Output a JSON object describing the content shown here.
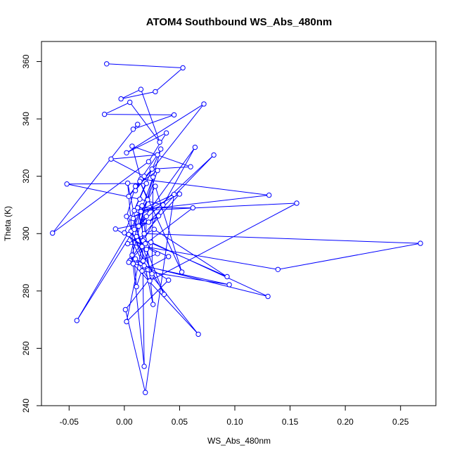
{
  "chart_data": {
    "type": "line",
    "title": "ATOM4 Southbound WS_Abs_480nm",
    "xlabel": "WS_Abs_480nm",
    "ylabel": "Theta (K)",
    "xlim": [
      -0.075,
      0.282
    ],
    "ylim": [
      240,
      367
    ],
    "xticks": [
      -0.05,
      0.0,
      0.05,
      0.1,
      0.15,
      0.2,
      0.25
    ],
    "xtick_labels": [
      "-0.05",
      "0.00",
      "0.05",
      "0.10",
      "0.15",
      "0.20",
      "0.25"
    ],
    "yticks": [
      240,
      260,
      280,
      300,
      320,
      340,
      360
    ],
    "ytick_labels": [
      "240",
      "260",
      "280",
      "300",
      "320",
      "340",
      "360"
    ],
    "grid": false,
    "series_color": "#0000ff",
    "marker": "open-circle",
    "series": [
      {
        "x": [
          -0.016,
          0.053,
          0.028,
          -0.003,
          0.015,
          0.032,
          0.005,
          -0.018,
          0.045,
          0.008,
          0.012,
          -0.065,
          0.022,
          0.038,
          0.002,
          0.072,
          0.01,
          0.018,
          -0.012,
          0.03,
          0.004,
          0.025,
          0.06,
          0.007,
          0.015,
          0.131,
          0.009,
          0.02,
          -0.052,
          0.014,
          0.035,
          0.006,
          0.05,
          0.018,
          0.268,
          0.139,
          0.003,
          0.027,
          0.093,
          0.011,
          0.02,
          0.04,
          0.016,
          0.095,
          0.008,
          0.03,
          -0.008,
          0.022,
          0.081,
          0.012,
          0.064,
          0.018,
          0.005,
          0.067,
          0.025,
          0.001,
          0.019,
          0.045,
          0.013,
          0.156,
          0.023,
          0.01,
          0.04,
          0.002,
          0.017,
          0.036,
          0.006,
          0.028,
          0.052,
          0.014,
          0.021,
          -0.043,
          0.009,
          0.031,
          0.004,
          0.018,
          0.13,
          0.024,
          0.011,
          0.003,
          0.026,
          0.016,
          0.018,
          0.007,
          0.033,
          0.0,
          0.02,
          0.012,
          0.062,
          0.016,
          0.008,
          0.025,
          0.026,
          0.015,
          0.004,
          0.019,
          0.02,
          0.013,
          0.03,
          0.01,
          0.002,
          0.017
        ],
        "y": [
          359.2,
          357.8,
          349.5,
          347.0,
          350.3,
          331.9,
          345.8,
          341.6,
          341.4,
          336.4,
          338.1,
          300.2,
          325.1,
          335.1,
          328.2,
          345.2,
          315.0,
          320.0,
          326.0,
          327.5,
          313.0,
          322.5,
          323.3,
          330.5,
          319.0,
          313.4,
          308.0,
          317.5,
          317.3,
          312.0,
          310.0,
          305.5,
          313.8,
          300.0,
          296.6,
          287.5,
          296.5,
          301.5,
          285.0,
          299.0,
          295.5,
          292.0,
          287.0,
          282.2,
          289.5,
          293.0,
          301.6,
          304.0,
          327.4,
          302.5,
          330.1,
          298.0,
          290.6,
          264.9,
          285.2,
          273.5,
          244.6,
          313.7,
          308.0,
          310.6,
          283.5,
          291.2,
          283.8,
          269.3,
          297.5,
          278.8,
          300.8,
          316.5,
          286.6,
          318.2,
          311.8,
          269.7,
          301.5,
          306.2,
          299.7,
          288.8,
          278.1,
          297.0,
          281.5,
          317.6,
          275.3,
          309.7,
          253.7,
          292.5,
          329.5,
          300.3,
          294.5,
          309.0,
          309.0,
          295.5,
          305.3,
          286.0,
          319.7,
          307.7,
          290.0,
          296.5,
          306.0,
          302.6,
          322.0,
          316.5,
          306.0,
          290.5
        ]
      }
    ]
  }
}
